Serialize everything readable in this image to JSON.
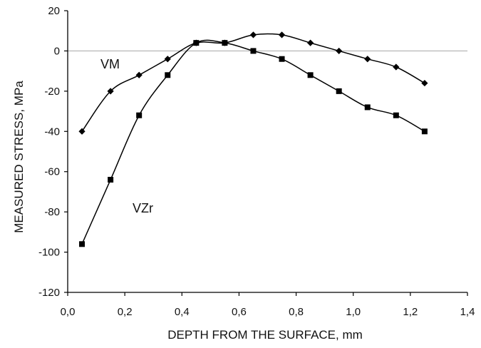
{
  "chart_data": {
    "type": "line",
    "title": "",
    "xlabel": "DEPTH FROM THE SURFACE,  mm",
    "ylabel": "MEASURED STRESS,  MPa",
    "xlim": [
      0.0,
      1.4
    ],
    "ylim": [
      -120,
      20
    ],
    "x_ticks": [
      "0,0",
      "0,2",
      "0,4",
      "0,6",
      "0,8",
      "1,0",
      "1,2",
      "1,4"
    ],
    "y_ticks": [
      "20",
      "0",
      "-20",
      "-40",
      "-60",
      "-80",
      "-100",
      "-120"
    ],
    "grid": false,
    "zero_line": true,
    "legend": "none (series labeled inline)",
    "series": [
      {
        "name": "VM",
        "marker": "diamond",
        "x": [
          0.05,
          0.15,
          0.25,
          0.35,
          0.45,
          0.55,
          0.65,
          0.75,
          0.85,
          0.95,
          1.05,
          1.15,
          1.25
        ],
        "values": [
          -40,
          -20,
          -12,
          -4,
          4,
          4,
          8,
          8,
          4,
          0,
          -4,
          -8,
          -16
        ]
      },
      {
        "name": "VZr",
        "marker": "square",
        "x": [
          0.05,
          0.15,
          0.25,
          0.35,
          0.45,
          0.55,
          0.65,
          0.75,
          0.85,
          0.95,
          1.05,
          1.15,
          1.25
        ],
        "values": [
          -96,
          -64,
          -32,
          -12,
          4,
          4,
          0,
          -4,
          -12,
          -20,
          -28,
          -32,
          -40
        ]
      }
    ],
    "colors": {
      "line": "#000000",
      "zero_line": "#b0b0b0",
      "axis": "#000000"
    }
  }
}
